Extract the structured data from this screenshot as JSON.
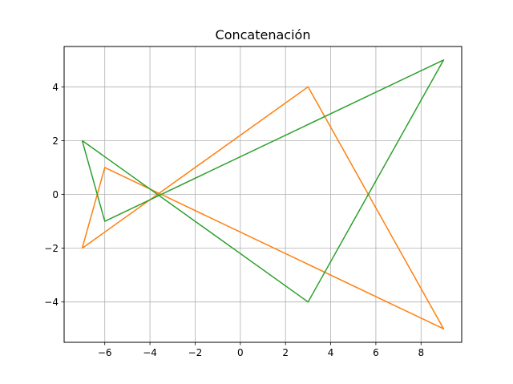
{
  "chart_data": {
    "type": "line",
    "title": "Concatenación",
    "xlabel": "",
    "ylabel": "",
    "xlim": [
      -7.8,
      9.8
    ],
    "ylim": [
      -5.5,
      5.5
    ],
    "xticks": [
      -6,
      -4,
      -2,
      0,
      2,
      4,
      6,
      8
    ],
    "yticks": [
      -4,
      -2,
      0,
      2,
      4
    ],
    "xtick_labels": [
      "−6",
      "−4",
      "−2",
      "0",
      "2",
      "4",
      "6",
      "8"
    ],
    "ytick_labels": [
      "−4",
      "−2",
      "0",
      "2",
      "4"
    ],
    "grid": true,
    "series": [
      {
        "color": "#ff7f0e",
        "x": [
          -7,
          -6,
          9,
          3,
          -7
        ],
        "y": [
          -2,
          1,
          -5,
          4,
          -2
        ]
      },
      {
        "color": "#2ca02c",
        "x": [
          -7,
          -6,
          9,
          3,
          -7
        ],
        "y": [
          2,
          -1,
          5,
          -4,
          2
        ]
      }
    ]
  }
}
